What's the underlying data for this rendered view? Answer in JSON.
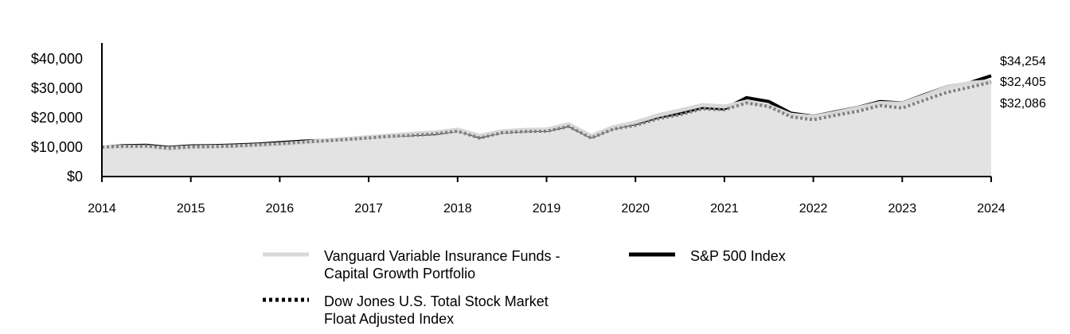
{
  "chart_data": {
    "type": "area",
    "title": "",
    "xlabel": "",
    "ylabel": "",
    "xlim": [
      2014,
      2024
    ],
    "ylim": [
      0,
      40000
    ],
    "y_ticks": [
      {
        "value": 0,
        "label": "$0"
      },
      {
        "value": 10000,
        "label": "$10,000"
      },
      {
        "value": 20000,
        "label": "$20,000"
      },
      {
        "value": 30000,
        "label": "$30,000"
      },
      {
        "value": 40000,
        "label": "$40,000"
      }
    ],
    "x_ticks": [
      {
        "value": 2014,
        "label": "2014"
      },
      {
        "value": 2015,
        "label": "2015"
      },
      {
        "value": 2016,
        "label": "2016"
      },
      {
        "value": 2017,
        "label": "2017"
      },
      {
        "value": 2018,
        "label": "2018"
      },
      {
        "value": 2019,
        "label": "2019"
      },
      {
        "value": 2020,
        "label": "2020"
      },
      {
        "value": 2021,
        "label": "2021"
      },
      {
        "value": 2022,
        "label": "2022"
      },
      {
        "value": 2023,
        "label": "2023"
      },
      {
        "value": 2024,
        "label": "2024"
      }
    ],
    "grid": false,
    "legend_placement": "bottom",
    "x": [
      2014,
      2014.25,
      2014.5,
      2014.75,
      2015,
      2015.25,
      2015.5,
      2015.75,
      2016,
      2016.25,
      2016.5,
      2016.75,
      2017,
      2017.25,
      2017.5,
      2017.75,
      2018,
      2018.25,
      2018.5,
      2018.75,
      2019,
      2019.25,
      2019.5,
      2019.75,
      2020,
      2020.25,
      2020.5,
      2020.75,
      2021,
      2021.25,
      2021.5,
      2021.75,
      2022,
      2022.25,
      2022.5,
      2022.75,
      2023,
      2023.25,
      2023.5,
      2023.75,
      2024
    ],
    "series": [
      {
        "name": "Vanguard Variable Insurance Funds - Capital Growth Portfolio",
        "style": "area-light",
        "values": [
          10000,
          10100,
          10100,
          9500,
          10000,
          10100,
          10300,
          10600,
          11000,
          11500,
          12300,
          12800,
          13400,
          14000,
          14600,
          15000,
          16000,
          13900,
          15400,
          15900,
          16000,
          17800,
          13800,
          16800,
          18400,
          20800,
          22500,
          24300,
          23800,
          25500,
          24000,
          21000,
          20300,
          21700,
          23300,
          25000,
          24800,
          27500,
          30300,
          31800,
          32405
        ]
      },
      {
        "name": "S&P 500 Index",
        "style": "solid-black",
        "values": [
          10000,
          10500,
          10600,
          9900,
          10400,
          10500,
          10700,
          11000,
          11500,
          12000,
          12300,
          12800,
          13300,
          13900,
          14300,
          14600,
          15800,
          13500,
          15200,
          15600,
          15700,
          17400,
          13500,
          16600,
          18000,
          20200,
          21500,
          23500,
          23000,
          26800,
          25500,
          21500,
          20500,
          22000,
          23500,
          25500,
          25000,
          27800,
          30500,
          31800,
          34254
        ]
      },
      {
        "name": "Dow Jones U.S. Total Stock Market Float Adjusted Index",
        "style": "dotted",
        "values": [
          10000,
          10300,
          10400,
          9600,
          10100,
          10200,
          10400,
          10800,
          11200,
          11700,
          12100,
          12600,
          13100,
          13700,
          14000,
          14500,
          15400,
          13100,
          14900,
          15300,
          15400,
          17000,
          13100,
          16100,
          17400,
          19600,
          21000,
          23000,
          22700,
          25000,
          23800,
          20300,
          19300,
          20800,
          22200,
          24100,
          23300,
          26000,
          28600,
          30300,
          32086
        ]
      }
    ],
    "end_labels": [
      "$34,254",
      "$32,405",
      "$32,086"
    ]
  },
  "legend": [
    {
      "label_lines": [
        "Vanguard Variable Insurance Funds -",
        "Capital Growth Portfolio"
      ]
    },
    {
      "label_lines": [
        "S&P 500 Index"
      ]
    },
    {
      "label_lines": [
        "Dow Jones U.S. Total Stock Market",
        "Float Adjusted Index"
      ]
    }
  ],
  "colors": {
    "area": "#e3e3e3",
    "fund_line": "#d8d8d8",
    "sp500": "#000000",
    "dj": "#808080",
    "axis": "#000000"
  }
}
